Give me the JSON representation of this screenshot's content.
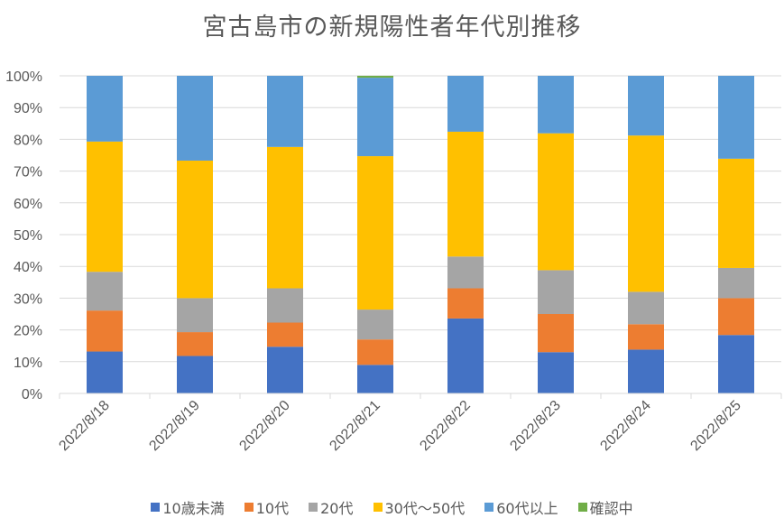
{
  "chart_data": {
    "type": "bar",
    "stacked": "percent",
    "title": "宮古島市の新規陽性者年代別推移",
    "xlabel": "",
    "ylabel": "",
    "ylim": [
      0,
      100
    ],
    "yticks": [
      "0%",
      "10%",
      "20%",
      "30%",
      "40%",
      "50%",
      "60%",
      "70%",
      "80%",
      "90%",
      "100%"
    ],
    "grid": true,
    "legend_position": "bottom",
    "categories": [
      "2022/8/18",
      "2022/8/19",
      "2022/8/20",
      "2022/8/21",
      "2022/8/22",
      "2022/8/23",
      "2022/8/24",
      "2022/8/25"
    ],
    "series": [
      {
        "name": "10歳未満",
        "color": "#4472C4",
        "values": [
          13.2,
          11.8,
          14.7,
          9.0,
          23.6,
          13.0,
          13.8,
          18.4
        ]
      },
      {
        "name": "10代",
        "color": "#ED7D31",
        "values": [
          12.9,
          7.5,
          7.6,
          8.0,
          9.5,
          12.0,
          8.0,
          11.6
        ]
      },
      {
        "name": "20代",
        "color": "#A5A5A5",
        "values": [
          12.2,
          10.7,
          10.8,
          9.4,
          10.0,
          13.8,
          10.2,
          9.5
        ]
      },
      {
        "name": "30代～50代",
        "color": "#FFC000",
        "values": [
          41.0,
          43.3,
          44.5,
          48.3,
          39.3,
          43.1,
          49.2,
          34.4
        ]
      },
      {
        "name": "60代以上",
        "color": "#5B9BD5",
        "values": [
          20.7,
          26.7,
          22.4,
          24.7,
          17.6,
          18.1,
          18.8,
          26.1
        ]
      },
      {
        "name": "確認中",
        "color": "#70AD47",
        "values": [
          0,
          0,
          0,
          0.6,
          0,
          0,
          0,
          0
        ]
      }
    ]
  }
}
